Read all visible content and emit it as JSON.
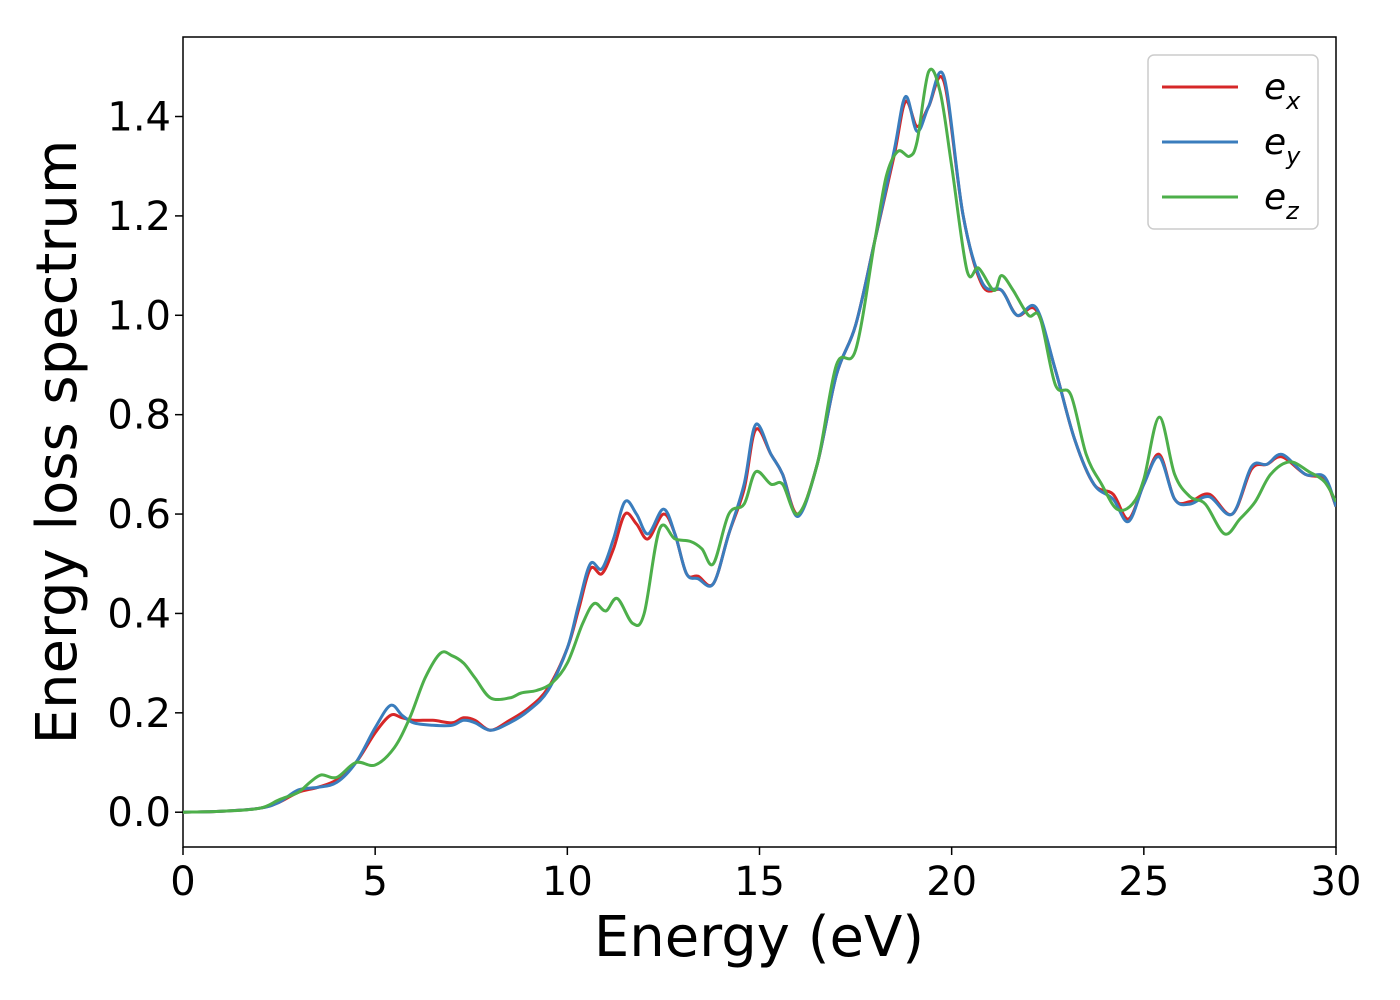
{
  "chart_data": {
    "type": "line",
    "xlabel": "Energy (eV)",
    "ylabel": "Energy loss spectrum",
    "xlim": [
      0,
      30
    ],
    "ylim": [
      -0.07,
      1.56
    ],
    "xticks": [
      0,
      5,
      10,
      15,
      20,
      25,
      30
    ],
    "xtick_labels": [
      "0",
      "5",
      "10",
      "15",
      "20",
      "25",
      "30"
    ],
    "yticks": [
      0.0,
      0.2,
      0.4,
      0.6,
      0.8,
      1.0,
      1.2,
      1.4
    ],
    "ytick_labels": [
      "0.0",
      "0.2",
      "0.4",
      "0.6",
      "0.8",
      "1.0",
      "1.2",
      "1.4"
    ],
    "grid": false,
    "legend_position": "top-right",
    "series": [
      {
        "name": "e_x",
        "label_base": "e",
        "label_sub": "x",
        "color": "#d62728",
        "x": [
          0,
          1,
          2,
          2.5,
          3,
          3.5,
          4,
          4.5,
          5,
          5.4,
          5.7,
          6,
          6.5,
          7,
          7.3,
          7.6,
          8,
          8.5,
          9,
          9.5,
          10,
          10.3,
          10.6,
          10.9,
          11.2,
          11.5,
          11.8,
          12.1,
          12.5,
          12.8,
          13.1,
          13.4,
          13.8,
          14.2,
          14.6,
          14.9,
          15.3,
          15.6,
          16,
          16.5,
          17,
          17.5,
          18,
          18.5,
          18.8,
          19.1,
          19.4,
          19.8,
          20.3,
          20.8,
          21.3,
          21.7,
          22.2,
          22.7,
          23.2,
          23.7,
          24.2,
          24.6,
          25,
          25.4,
          25.8,
          26.2,
          26.7,
          27.3,
          27.8,
          28.2,
          28.6,
          29.2,
          29.7,
          30
        ],
        "y": [
          0,
          0.002,
          0.008,
          0.02,
          0.04,
          0.05,
          0.065,
          0.1,
          0.16,
          0.195,
          0.19,
          0.185,
          0.185,
          0.18,
          0.19,
          0.185,
          0.165,
          0.185,
          0.21,
          0.25,
          0.33,
          0.41,
          0.49,
          0.48,
          0.53,
          0.6,
          0.58,
          0.55,
          0.6,
          0.56,
          0.48,
          0.475,
          0.46,
          0.56,
          0.65,
          0.77,
          0.72,
          0.68,
          0.6,
          0.7,
          0.88,
          0.98,
          1.15,
          1.32,
          1.43,
          1.38,
          1.42,
          1.47,
          1.2,
          1.06,
          1.05,
          1.0,
          1.01,
          0.89,
          0.75,
          0.66,
          0.64,
          0.59,
          0.66,
          0.72,
          0.63,
          0.625,
          0.64,
          0.6,
          0.69,
          0.7,
          0.715,
          0.68,
          0.67,
          0.615
        ]
      },
      {
        "name": "e_y",
        "label_base": "e",
        "label_sub": "y",
        "color": "#3a7dbd",
        "x": [
          0,
          1,
          2,
          2.5,
          3,
          3.5,
          4,
          4.5,
          5,
          5.4,
          5.7,
          6,
          6.5,
          7,
          7.3,
          7.6,
          8,
          8.5,
          9,
          9.5,
          10,
          10.3,
          10.6,
          10.9,
          11.2,
          11.5,
          11.8,
          12.1,
          12.5,
          12.8,
          13.1,
          13.4,
          13.8,
          14.2,
          14.6,
          14.9,
          15.3,
          15.6,
          16,
          16.5,
          17,
          17.5,
          18,
          18.5,
          18.8,
          19.1,
          19.4,
          19.8,
          20.3,
          20.8,
          21.3,
          21.7,
          22.2,
          22.7,
          23.2,
          23.7,
          24.2,
          24.6,
          25,
          25.4,
          25.8,
          26.2,
          26.7,
          27.3,
          27.8,
          28.2,
          28.6,
          29.2,
          29.7,
          30
        ],
        "y": [
          0,
          0.002,
          0.008,
          0.02,
          0.045,
          0.05,
          0.06,
          0.1,
          0.17,
          0.215,
          0.195,
          0.18,
          0.175,
          0.175,
          0.185,
          0.18,
          0.165,
          0.18,
          0.205,
          0.245,
          0.33,
          0.42,
          0.5,
          0.49,
          0.55,
          0.625,
          0.6,
          0.56,
          0.61,
          0.56,
          0.48,
          0.47,
          0.46,
          0.56,
          0.66,
          0.78,
          0.72,
          0.68,
          0.595,
          0.7,
          0.88,
          0.98,
          1.15,
          1.33,
          1.44,
          1.37,
          1.42,
          1.48,
          1.2,
          1.065,
          1.05,
          1.0,
          1.015,
          0.89,
          0.75,
          0.66,
          0.63,
          0.585,
          0.66,
          0.715,
          0.63,
          0.62,
          0.635,
          0.6,
          0.695,
          0.7,
          0.72,
          0.68,
          0.675,
          0.615
        ]
      },
      {
        "name": "e_z",
        "label_base": "e",
        "label_sub": "z",
        "color": "#4daf4a",
        "x": [
          0,
          1,
          2,
          2.5,
          3,
          3.3,
          3.6,
          4,
          4.5,
          5,
          5.5,
          5.9,
          6.3,
          6.7,
          7,
          7.3,
          7.6,
          8,
          8.5,
          8.8,
          9.2,
          9.6,
          10,
          10.4,
          10.7,
          11,
          11.3,
          11.7,
          12,
          12.4,
          12.8,
          13.2,
          13.5,
          13.8,
          14.2,
          14.6,
          14.9,
          15.3,
          15.6,
          16,
          16.5,
          17,
          17.5,
          18,
          18.3,
          18.6,
          18.9,
          19.1,
          19.4,
          19.7,
          20,
          20.4,
          20.7,
          21.1,
          21.3,
          21.6,
          22,
          22.3,
          22.7,
          23.1,
          23.5,
          23.9,
          24.3,
          24.7,
          25,
          25.4,
          25.8,
          26.2,
          26.6,
          27.1,
          27.5,
          27.9,
          28.3,
          28.8,
          29.3,
          29.7,
          30
        ],
        "y": [
          0,
          0.002,
          0.008,
          0.025,
          0.04,
          0.06,
          0.075,
          0.07,
          0.1,
          0.095,
          0.13,
          0.19,
          0.27,
          0.32,
          0.315,
          0.3,
          0.27,
          0.23,
          0.23,
          0.24,
          0.245,
          0.26,
          0.3,
          0.38,
          0.42,
          0.405,
          0.43,
          0.38,
          0.4,
          0.57,
          0.55,
          0.545,
          0.53,
          0.5,
          0.6,
          0.62,
          0.685,
          0.66,
          0.66,
          0.6,
          0.7,
          0.9,
          0.93,
          1.15,
          1.28,
          1.33,
          1.32,
          1.35,
          1.49,
          1.45,
          1.3,
          1.09,
          1.095,
          1.05,
          1.08,
          1.05,
          1.0,
          0.995,
          0.86,
          0.84,
          0.72,
          0.66,
          0.61,
          0.62,
          0.67,
          0.795,
          0.68,
          0.635,
          0.62,
          0.56,
          0.59,
          0.625,
          0.68,
          0.705,
          0.685,
          0.665,
          0.625
        ]
      }
    ]
  }
}
